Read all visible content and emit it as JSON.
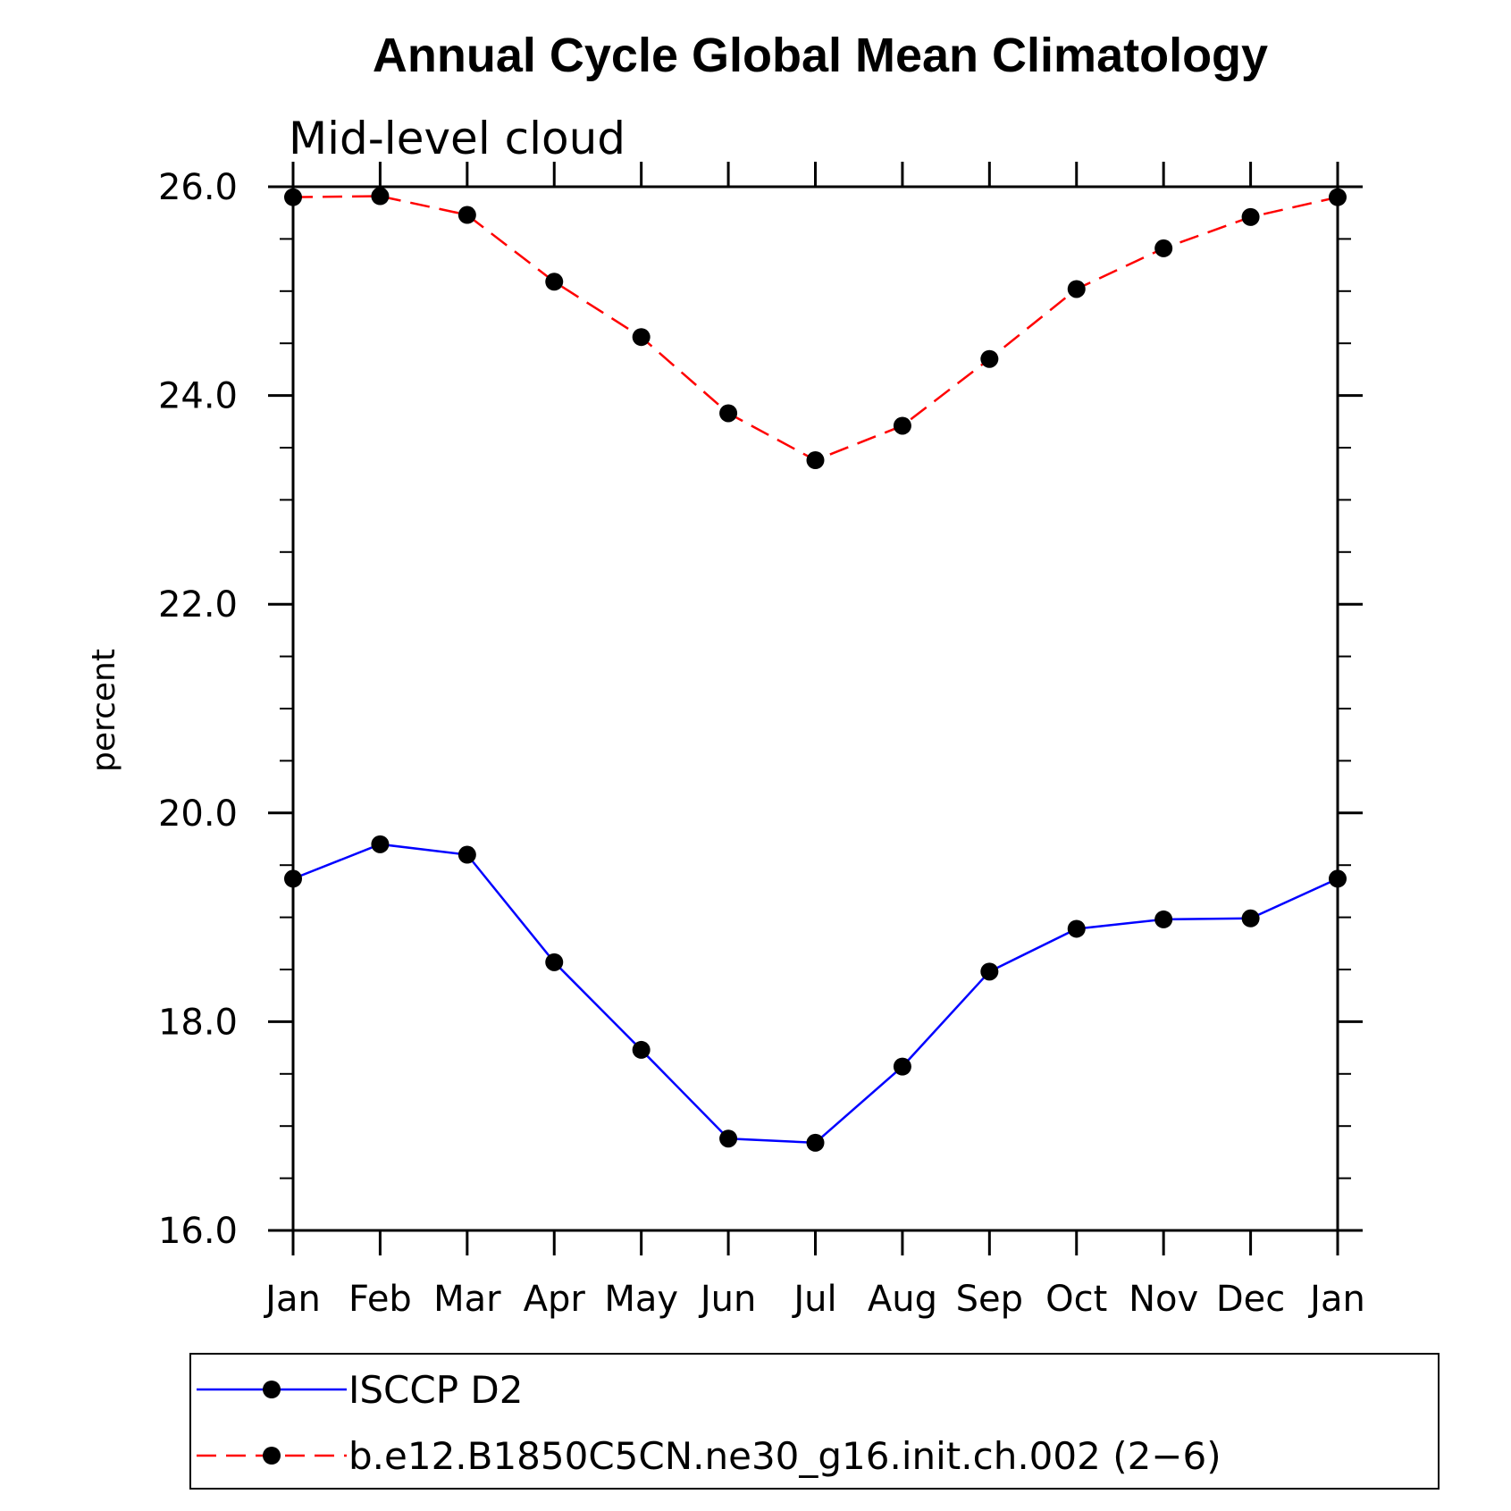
{
  "chart_data": {
    "type": "line",
    "title": "Annual Cycle Global Mean Climatology",
    "subtitle": "Mid-level cloud",
    "xlabel": "",
    "ylabel": "percent",
    "categories": [
      "Jan",
      "Feb",
      "Mar",
      "Apr",
      "May",
      "Jun",
      "Jul",
      "Aug",
      "Sep",
      "Oct",
      "Nov",
      "Dec",
      "Jan"
    ],
    "ylim": [
      16.0,
      26.0
    ],
    "yticks": [
      "16.0",
      "18.0",
      "20.0",
      "22.0",
      "24.0",
      "26.0"
    ],
    "grid": false,
    "legend_position": "bottom",
    "series": [
      {
        "name": "ISCCP D2",
        "color": "#0000ff",
        "line_style": "solid",
        "marker": "circle",
        "values": [
          19.37,
          19.7,
          19.6,
          18.57,
          17.73,
          16.88,
          16.84,
          17.57,
          18.48,
          18.89,
          18.98,
          18.99,
          19.37
        ]
      },
      {
        "name": "b.e12.B1850C5CN.ne30_g16.init.ch.002 (2−6)",
        "color": "#ff0000",
        "line_style": "dashed",
        "marker": "circle",
        "values": [
          25.9,
          25.91,
          25.73,
          25.09,
          24.56,
          23.83,
          23.38,
          23.71,
          24.35,
          25.02,
          25.41,
          25.71,
          25.9
        ]
      }
    ]
  }
}
